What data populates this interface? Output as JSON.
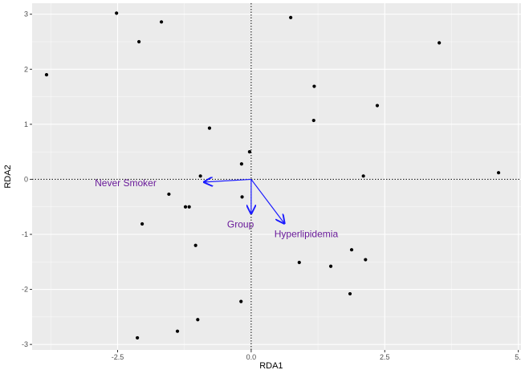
{
  "chart_data": {
    "type": "scatter",
    "title": "",
    "xlabel": "RDA1",
    "ylabel": "RDA2",
    "xlim": [
      -4.1,
      5.05
    ],
    "ylim": [
      -3.1,
      3.2
    ],
    "x_ticks": [
      -2.5,
      0.0,
      2.5,
      5.0
    ],
    "x_tick_labels": [
      "-2.5",
      "0.0",
      "2.5",
      "5."
    ],
    "y_ticks": [
      -3,
      -2,
      -1,
      0,
      1,
      2,
      3
    ],
    "y_tick_labels": [
      "-3",
      "-2",
      "-1",
      "0",
      "1",
      "2",
      "3"
    ],
    "grid": true,
    "reference_lines": {
      "x": 0,
      "y": 0,
      "style": "dotted"
    },
    "point_color": "#000000",
    "arrow_color": "#1a1aff",
    "label_color": "#6a1b9a",
    "panel_background": "#ebebeb",
    "grid_color": "#ffffff",
    "points": [
      {
        "x": -3.83,
        "y": 1.9
      },
      {
        "x": -2.52,
        "y": 3.02
      },
      {
        "x": -2.1,
        "y": 2.5
      },
      {
        "x": -1.68,
        "y": 2.86
      },
      {
        "x": 0.74,
        "y": 2.94
      },
      {
        "x": 3.52,
        "y": 2.48
      },
      {
        "x": 1.18,
        "y": 1.69
      },
      {
        "x": 2.36,
        "y": 1.34
      },
      {
        "x": 1.17,
        "y": 1.07
      },
      {
        "x": -0.78,
        "y": 0.93
      },
      {
        "x": -0.03,
        "y": 0.5
      },
      {
        "x": -0.18,
        "y": 0.28
      },
      {
        "x": -0.95,
        "y": 0.06
      },
      {
        "x": 2.1,
        "y": 0.06
      },
      {
        "x": 4.63,
        "y": 0.12
      },
      {
        "x": -1.54,
        "y": -0.27
      },
      {
        "x": -0.17,
        "y": -0.32
      },
      {
        "x": -1.23,
        "y": -0.5
      },
      {
        "x": -1.16,
        "y": -0.5
      },
      {
        "x": -2.04,
        "y": -0.81
      },
      {
        "x": -1.04,
        "y": -1.2
      },
      {
        "x": 1.88,
        "y": -1.28
      },
      {
        "x": 2.14,
        "y": -1.46
      },
      {
        "x": 0.9,
        "y": -1.51
      },
      {
        "x": 1.49,
        "y": -1.58
      },
      {
        "x": 1.85,
        "y": -2.08
      },
      {
        "x": -0.19,
        "y": -2.22
      },
      {
        "x": -1.0,
        "y": -2.55
      },
      {
        "x": -1.38,
        "y": -2.76
      },
      {
        "x": -2.13,
        "y": -2.88
      }
    ],
    "arrows": [
      {
        "label": "Never Smoker",
        "x": -0.88,
        "y": -0.05
      },
      {
        "label": "Group",
        "x": 0.0,
        "y": -0.62
      },
      {
        "label": "Hyperlipidemia",
        "x": 0.62,
        "y": -0.8
      }
    ],
    "arrow_label_positions": [
      {
        "x": -2.35,
        "y": -0.07
      },
      {
        "x": -0.2,
        "y": -0.82
      },
      {
        "x": 1.03,
        "y": -0.99
      }
    ]
  }
}
